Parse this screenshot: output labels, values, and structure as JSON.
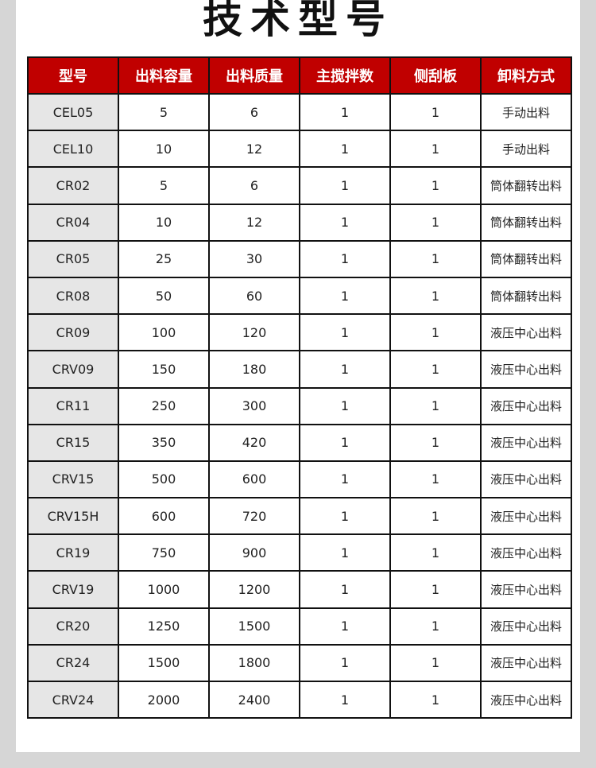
{
  "title": "技术型号",
  "colors": {
    "header_bg": "#c00000",
    "model_cell_bg": "#e6e6e6",
    "page_bg": "#d6d6d6"
  },
  "table": {
    "headers": [
      "型号",
      "出料容量",
      "出料质量",
      "主搅拌数",
      "侧刮板",
      "卸料方式"
    ],
    "rows": [
      [
        "CEL05",
        "5",
        "6",
        "1",
        "1",
        "手动出料"
      ],
      [
        "CEL10",
        "10",
        "12",
        "1",
        "1",
        "手动出料"
      ],
      [
        "CR02",
        "5",
        "6",
        "1",
        "1",
        "筒体翻转出料"
      ],
      [
        "CR04",
        "10",
        "12",
        "1",
        "1",
        "筒体翻转出料"
      ],
      [
        "CR05",
        "25",
        "30",
        "1",
        "1",
        "筒体翻转出料"
      ],
      [
        "CR08",
        "50",
        "60",
        "1",
        "1",
        "筒体翻转出料"
      ],
      [
        "CR09",
        "100",
        "120",
        "1",
        "1",
        "液压中心出料"
      ],
      [
        "CRV09",
        "150",
        "180",
        "1",
        "1",
        "液压中心出料"
      ],
      [
        "CR11",
        "250",
        "300",
        "1",
        "1",
        "液压中心出料"
      ],
      [
        "CR15",
        "350",
        "420",
        "1",
        "1",
        "液压中心出料"
      ],
      [
        "CRV15",
        "500",
        "600",
        "1",
        "1",
        "液压中心出料"
      ],
      [
        "CRV15H",
        "600",
        "720",
        "1",
        "1",
        "液压中心出料"
      ],
      [
        "CR19",
        "750",
        "900",
        "1",
        "1",
        "液压中心出料"
      ],
      [
        "CRV19",
        "1000",
        "1200",
        "1",
        "1",
        "液压中心出料"
      ],
      [
        "CR20",
        "1250",
        "1500",
        "1",
        "1",
        "液压中心出料"
      ],
      [
        "CR24",
        "1500",
        "1800",
        "1",
        "1",
        "液压中心出料"
      ],
      [
        "CRV24",
        "2000",
        "2400",
        "1",
        "1",
        "液压中心出料"
      ]
    ]
  }
}
